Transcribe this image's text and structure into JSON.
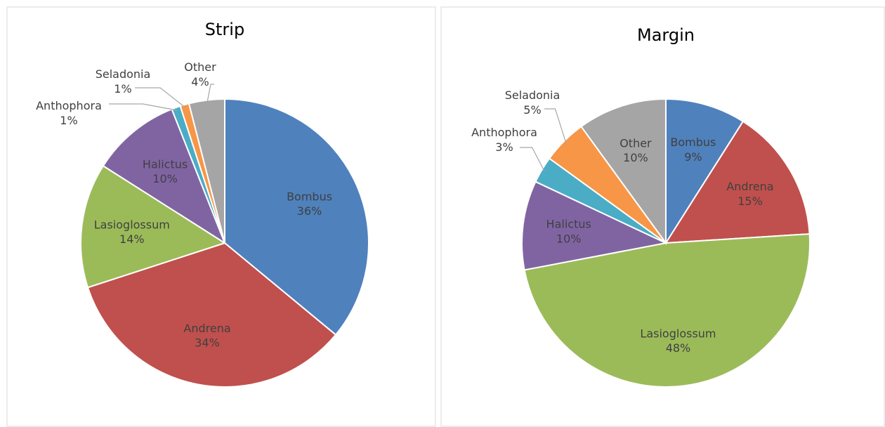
{
  "chart_data": [
    {
      "type": "pie",
      "title": "Strip",
      "categories": [
        "Bombus",
        "Andrena",
        "Lasioglossum",
        "Halictus",
        "Anthophora",
        "Seladonia",
        "Other"
      ],
      "values": [
        36,
        34,
        14,
        10,
        1,
        1,
        4
      ],
      "value_labels": [
        "36%",
        "34%",
        "14%",
        "10%",
        "1%",
        "1%",
        "4%"
      ],
      "colors": [
        "#4f81bd",
        "#c0504d",
        "#9bbb59",
        "#8064a2",
        "#4bacc6",
        "#f79646",
        "#a5a5a5"
      ]
    },
    {
      "type": "pie",
      "title": "Margin",
      "categories": [
        "Bombus",
        "Andrena",
        "Lasioglossum",
        "Halictus",
        "Anthophora",
        "Seladonia",
        "Other"
      ],
      "values": [
        9,
        15,
        48,
        10,
        3,
        5,
        10
      ],
      "value_labels": [
        "9%",
        "15%",
        "48%",
        "10%",
        "3%",
        "5%",
        "10%"
      ],
      "colors": [
        "#4f81bd",
        "#c0504d",
        "#9bbb59",
        "#8064a2",
        "#4bacc6",
        "#f79646",
        "#a5a5a5"
      ]
    }
  ]
}
